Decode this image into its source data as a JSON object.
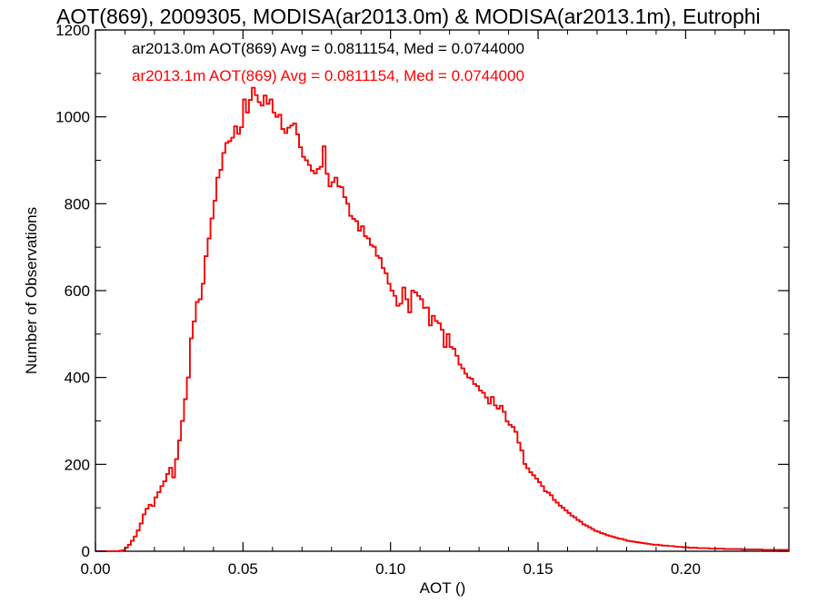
{
  "chart_data": {
    "type": "histogram",
    "title": "AOT(869), 2009305, MODISA(ar2013.0m) & MODISA(ar2013.1m), Eutrophi",
    "xlabel": "AOT ()",
    "ylabel": "Number of Observations",
    "xlim": [
      0.0,
      0.235
    ],
    "ylim": [
      0,
      1200
    ],
    "xticks": [
      0.0,
      0.05,
      0.1,
      0.15,
      0.2
    ],
    "xtick_labels": [
      "0.00",
      "0.05",
      "0.10",
      "0.15",
      "0.20"
    ],
    "yticks": [
      0,
      200,
      400,
      600,
      800,
      1000,
      1200
    ],
    "ytick_labels": [
      "0",
      "200",
      "400",
      "600",
      "800",
      "1000",
      "1200"
    ],
    "grid": false,
    "legend_position": "top-left",
    "bin_width": 0.001,
    "x_start": 0.0,
    "series": [
      {
        "name": "ar2013.0m AOT(869) Avg = 0.0811154, Med = 0.0744000",
        "color": "#000000",
        "values": [
          0,
          0,
          0,
          0,
          0,
          0,
          0,
          0,
          1,
          2,
          8,
          15,
          24,
          34,
          48,
          64,
          85,
          98,
          107,
          104,
          124,
          136,
          150,
          161,
          178,
          192,
          170,
          212,
          255,
          300,
          350,
          400,
          490,
          529,
          574,
          580,
          616,
          679,
          720,
          766,
          807,
          860,
          878,
          917,
          940,
          944,
          952,
          978,
          961,
          976,
          1040,
          1010,
          1039,
          1067,
          1050,
          1034,
          1026,
          1049,
          1030,
          1040,
          1010,
          1000,
          1005,
          972,
          963,
          975,
          980,
          985,
          960,
          930,
          908,
          900,
          889,
          876,
          870,
          880,
          885,
          932,
          869,
          840,
          850,
          860,
          840,
          838,
          815,
          800,
          772,
          765,
          760,
          738,
          748,
          725,
          720,
          705,
          701,
          680,
          675,
          652,
          640,
          616,
          600,
          588,
          565,
          570,
          607,
          580,
          550,
          600,
          596,
          588,
          580,
          560,
          561,
          520,
          542,
          530,
          525,
          510,
          470,
          500,
          470,
          466,
          450,
          430,
          421,
          409,
          400,
          397,
          385,
          380,
          370,
          365,
          354,
          340,
          355,
          336,
          328,
          335,
          321,
          299,
          291,
          286,
          275,
          250,
          232,
          201,
          191,
          182,
          175,
          167,
          159,
          150,
          138,
          135,
          129,
          118,
          112,
          105,
          100,
          94,
          88,
          82,
          78,
          72,
          68,
          62,
          59,
          55,
          51,
          47,
          45,
          42,
          40,
          37,
          35,
          33,
          31,
          29,
          28,
          26,
          24,
          23,
          22,
          21,
          20,
          19,
          18,
          17,
          16,
          15,
          15,
          14,
          13,
          13,
          12,
          12,
          11,
          10,
          10,
          9,
          9,
          8,
          8,
          8,
          7,
          7,
          7,
          7,
          6,
          6,
          6,
          6,
          6,
          5,
          5,
          5,
          5,
          5,
          5,
          4,
          4,
          4,
          4,
          4,
          4,
          4,
          3,
          3,
          3,
          3,
          3,
          3,
          3,
          3,
          3,
          2,
          2,
          2,
          2
        ]
      },
      {
        "name": "ar2013.1m AOT(869) Avg = 0.0811154, Med = 0.0744000",
        "color": "#ff0000",
        "values": [
          0,
          0,
          0,
          0,
          0,
          0,
          0,
          0,
          1,
          2,
          8,
          15,
          24,
          34,
          48,
          64,
          85,
          98,
          107,
          104,
          124,
          136,
          150,
          161,
          178,
          192,
          170,
          212,
          255,
          300,
          350,
          400,
          490,
          529,
          574,
          580,
          616,
          679,
          720,
          766,
          807,
          860,
          878,
          917,
          940,
          944,
          952,
          978,
          961,
          976,
          1040,
          1010,
          1039,
          1067,
          1050,
          1034,
          1026,
          1049,
          1030,
          1040,
          1010,
          1000,
          1005,
          972,
          963,
          975,
          980,
          985,
          960,
          930,
          908,
          900,
          889,
          876,
          870,
          880,
          885,
          932,
          869,
          840,
          850,
          860,
          840,
          838,
          815,
          800,
          772,
          765,
          760,
          738,
          748,
          725,
          720,
          705,
          701,
          680,
          675,
          652,
          640,
          616,
          600,
          588,
          565,
          570,
          607,
          580,
          550,
          600,
          596,
          588,
          580,
          560,
          561,
          520,
          542,
          530,
          525,
          510,
          470,
          500,
          470,
          466,
          450,
          430,
          421,
          409,
          400,
          397,
          385,
          380,
          370,
          365,
          354,
          340,
          355,
          336,
          328,
          335,
          321,
          299,
          291,
          286,
          275,
          250,
          232,
          201,
          191,
          182,
          175,
          167,
          159,
          150,
          138,
          135,
          129,
          118,
          112,
          105,
          100,
          94,
          88,
          82,
          78,
          72,
          68,
          62,
          59,
          55,
          51,
          47,
          45,
          42,
          40,
          37,
          35,
          33,
          31,
          29,
          28,
          26,
          24,
          23,
          22,
          21,
          20,
          19,
          18,
          17,
          16,
          15,
          15,
          14,
          13,
          13,
          12,
          12,
          11,
          10,
          10,
          9,
          9,
          8,
          8,
          8,
          7,
          7,
          7,
          7,
          6,
          6,
          6,
          6,
          6,
          5,
          5,
          5,
          5,
          5,
          5,
          4,
          4,
          4,
          4,
          4,
          4,
          4,
          3,
          3,
          3,
          3,
          3,
          3,
          3,
          3,
          3,
          2,
          2,
          2,
          2
        ]
      }
    ]
  }
}
